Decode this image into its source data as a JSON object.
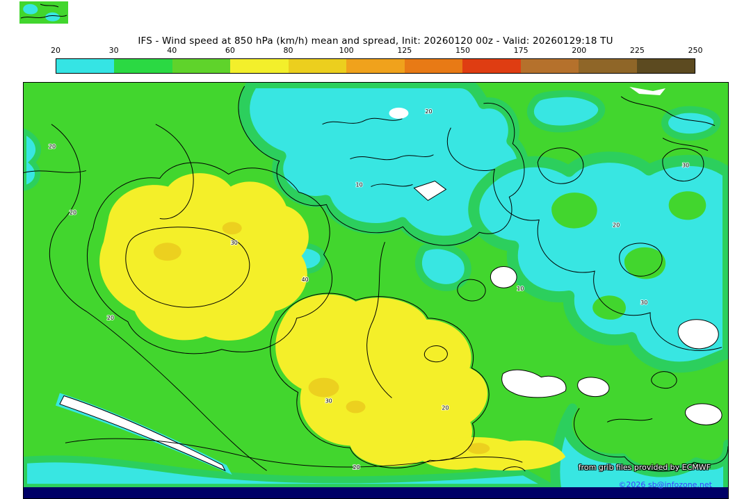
{
  "chart_data": {
    "type": "heatmap",
    "title": "IFS - Wind speed at 850 hPa (km/h) mean and spread, Init: 20260120 00z - Valid: 20260129:18 TU",
    "model": "IFS",
    "variable": "Wind speed at 850 hPa (km/h) mean and spread",
    "init": "20260120 00z",
    "valid": "20260129:18 TU",
    "colorbar": {
      "ticks": [
        "20",
        "30",
        "40",
        "60",
        "80",
        "100",
        "125",
        "150",
        "175",
        "200",
        "225",
        "250"
      ],
      "colors": [
        "#35e4e4",
        "#2bd943",
        "#5fd32b",
        "#f3ef2b",
        "#eccf1e",
        "#f0a21c",
        "#e87a15",
        "#df3d12",
        "#b5712c",
        "#8f6628",
        "#5c4a20"
      ],
      "border": "#000000"
    },
    "map_colors": {
      "cyan_20_30": "#38e6e2",
      "green_30_40": "#2ccf5d",
      "green_40_60": "#42d62e",
      "yellow_60_80": "#f4ef29",
      "gold_80_100": "#ecd01f",
      "white_below_scale": "#ffffff",
      "contour": "#000000",
      "bottom_strip": "#000066"
    },
    "spread_contour_labels": [
      "10",
      "20",
      "30",
      "40"
    ],
    "attribution": "from grib files provided by ECMWF",
    "copyright": "©2026 sb@infozone.net"
  }
}
